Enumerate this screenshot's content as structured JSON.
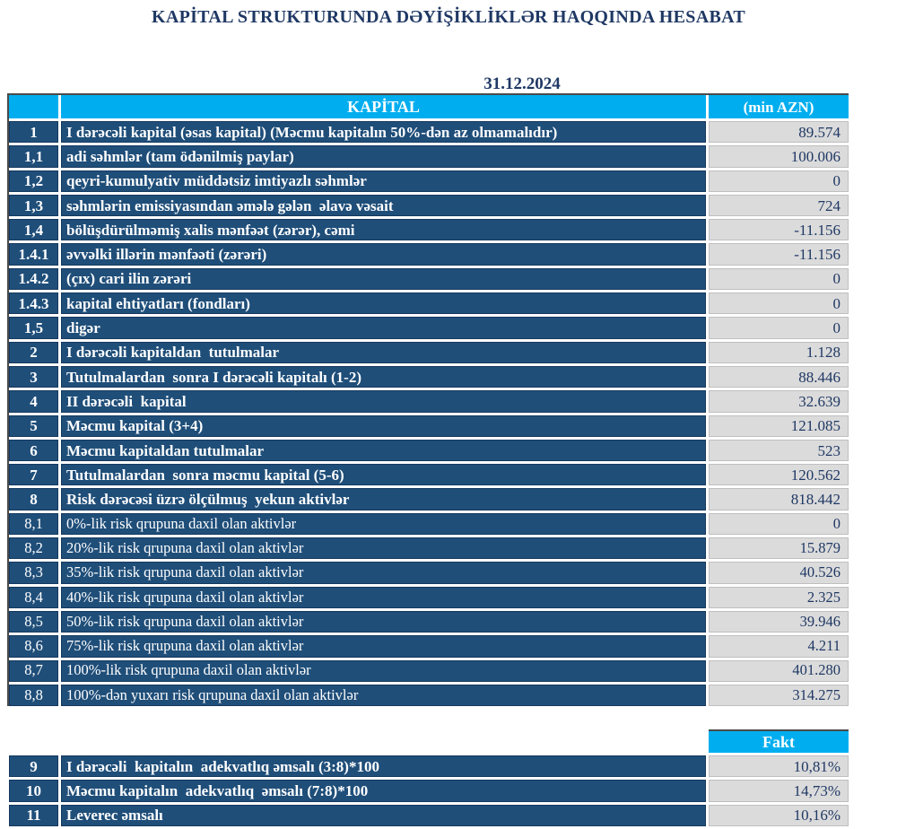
{
  "title": "KAPİTAL STRUKTURUNDA DƏYİŞİKLİKLƏR HAQQINDA HESABAT",
  "date": "31.12.2024",
  "colors": {
    "header_cyan": "#00AEEF",
    "row_navy": "#1F4E79",
    "value_gray": "#DBDBDB",
    "text_navy": "#1F3864"
  },
  "capital_table": {
    "header": {
      "kapital": "KAPİTAL",
      "unit": "(min AZN)"
    },
    "rows": [
      {
        "no": "1",
        "label": "I dərəcəli kapital (əsas kapital) (Məcmu kapitalın 50%-dən az olmamalıdır)",
        "value": "89.574",
        "bold": true
      },
      {
        "no": "1,1",
        "label": "adi səhmlər (tam ödənilmiş paylar)",
        "value": "100.006",
        "bold": true
      },
      {
        "no": "1,2",
        "label": "qeyri-kumulyativ müddətsiz imtiyazlı səhmlər",
        "value": "0",
        "bold": true
      },
      {
        "no": "1,3",
        "label": "səhmlərin emissiyasından əmələ gələn  əlavə vəsait",
        "value": "724",
        "bold": true
      },
      {
        "no": "1,4",
        "label": "bölüşdürülməmiş xalis mənfəət (zərər), cəmi",
        "value": "-11.156",
        "bold": true
      },
      {
        "no": "1.4.1",
        "label": "əvvəlki illərin mənfəəti (zərəri)",
        "value": "-11.156",
        "bold": true
      },
      {
        "no": "1.4.2",
        "label": "(çıx) cari ilin zərəri",
        "value": "0",
        "bold": true
      },
      {
        "no": "1.4.3",
        "label": "kapital ehtiyatları (fondları)",
        "value": "0",
        "bold": true
      },
      {
        "no": "1,5",
        "label": "digər",
        "value": "0",
        "bold": true
      },
      {
        "no": "2",
        "label": "I dərəcəli kapitaldan  tutulmalar",
        "value": "1.128",
        "bold": true
      },
      {
        "no": "3",
        "label": "Tutulmalardan  sonra I dərəcəli kapitalı (1-2)",
        "value": "88.446",
        "bold": true
      },
      {
        "no": "4",
        "label": "II dərəcəli  kapital",
        "value": "32.639",
        "bold": true
      },
      {
        "no": "5",
        "label": "Məcmu kapital (3+4)",
        "value": "121.085",
        "bold": true
      },
      {
        "no": "6",
        "label": "Məcmu kapitaldan tutulmalar",
        "value": "523",
        "bold": true
      },
      {
        "no": "7",
        "label": "Tutulmalardan  sonra məcmu kapital (5-6)",
        "value": "120.562",
        "bold": true
      },
      {
        "no": "8",
        "label": "Risk dərəcəsi üzrə ölçülmuş  yekun aktivlər",
        "value": "818.442",
        "bold": true
      },
      {
        "no": "8,1",
        "label": "0%-lik risk qrupuna daxil olan aktivlər",
        "value": "0",
        "bold": false
      },
      {
        "no": "8,2",
        "label": "20%-lik risk qrupuna daxil olan aktivlər",
        "value": "15.879",
        "bold": false
      },
      {
        "no": "8,3",
        "label": "35%-lik risk qrupuna daxil olan aktivlər",
        "value": "40.526",
        "bold": false
      },
      {
        "no": "8,4",
        "label": "40%-lik risk qrupuna daxil olan aktivlər",
        "value": "2.325",
        "bold": false
      },
      {
        "no": "8,5",
        "label": "50%-lik risk qrupuna daxil olan aktivlər",
        "value": "39.946",
        "bold": false
      },
      {
        "no": "8,6",
        "label": "75%-lik risk qrupuna daxil olan aktivlər",
        "value": "4.211",
        "bold": false
      },
      {
        "no": "8,7",
        "label": "100%-lik risk qrupuna daxil olan aktivlər",
        "value": "401.280",
        "bold": false
      },
      {
        "no": "8,8",
        "label": "100%-dən yuxarı risk qrupuna daxil olan aktivlər",
        "value": "314.275",
        "bold": false
      }
    ]
  },
  "ratios_table": {
    "header": "Fakt",
    "rows": [
      {
        "no": "9",
        "label": "I dərəcəli  kapitalın  adekvatlıq əmsalı (3:8)*100",
        "value": "10,81%",
        "bold": true
      },
      {
        "no": "10",
        "label": "Məcmu kapitalın  adekvatlıq  əmsalı (7:8)*100",
        "value": "14,73%",
        "bold": true
      },
      {
        "no": "11",
        "label": "Leverec əmsalı",
        "value": "10,16%",
        "bold": true
      }
    ]
  }
}
